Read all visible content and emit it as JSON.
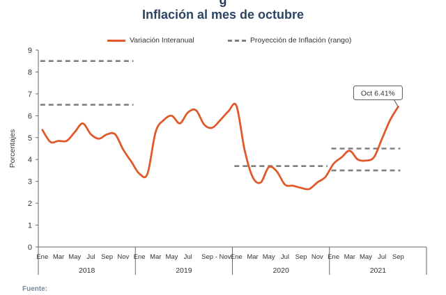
{
  "chart_data": {
    "type": "line",
    "title": "Inflación al mes de octubre",
    "ylabel": "Porcentajes",
    "xlabel": "",
    "ylim": [
      0,
      9
    ],
    "yticks": [
      0,
      1,
      2,
      3,
      4,
      5,
      6,
      7,
      8,
      9
    ],
    "grid": "none",
    "legend_position": "top",
    "years": [
      "2018",
      "2019",
      "2020",
      "2021"
    ],
    "x_tick_labels": [
      [
        "Ene",
        "Mar",
        "May",
        "Jul",
        "Sep",
        "Nov"
      ],
      [
        "Ene",
        "Mar",
        "May",
        "Jul",
        "Sep - Nov"
      ],
      [
        "Ene",
        "Mar",
        "May",
        "Jul",
        "Sep",
        "Nov"
      ],
      [
        "Ene",
        "Mar",
        "May",
        "Jul",
        "Sep"
      ]
    ],
    "series": [
      {
        "name": "Variación Interanual",
        "color": "#e0592a",
        "style": "solid",
        "values": [
          5.35,
          4.8,
          4.85,
          4.85,
          5.25,
          5.65,
          5.15,
          4.95,
          5.15,
          5.15,
          4.45,
          3.9,
          3.35,
          3.35,
          5.25,
          5.8,
          6.0,
          5.65,
          6.15,
          6.25,
          5.6,
          5.45,
          5.8,
          6.2,
          6.45,
          4.45,
          3.2,
          2.95,
          3.65,
          3.45,
          2.85,
          2.8,
          2.7,
          2.65,
          2.95,
          3.2,
          3.8,
          4.1,
          4.4,
          4.0,
          3.95,
          4.1,
          4.95,
          5.8,
          6.41
        ]
      },
      {
        "name": "Proyección de Inflación (rango)",
        "color": "#7f7f7f",
        "style": "dashed",
        "segments": [
          {
            "x_start": 0,
            "x_end": 11,
            "lower": 6.5,
            "upper": 8.5
          },
          {
            "x_start": 24,
            "x_end": 35,
            "lower": 3.7,
            "upper": 3.7
          },
          {
            "x_start": 36,
            "x_end": 44,
            "lower": 3.5,
            "upper": 4.5
          }
        ]
      }
    ],
    "annotation": {
      "text": "Oct 6.41%",
      "index": 44
    }
  },
  "footer": {
    "source_label": "Fuente:"
  }
}
